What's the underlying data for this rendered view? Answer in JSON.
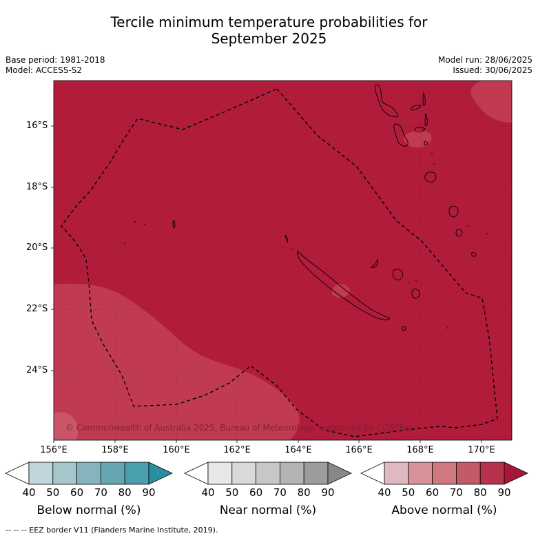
{
  "title": {
    "line1": "Tercile minimum temperature probabilities for",
    "line2": "September 2025"
  },
  "meta": {
    "base_period": "Base period: 1981-2018",
    "model": "Model: ACCESS-S2",
    "model_run": "Model run: 28/06/2025",
    "issued": "Issued: 30/06/2025"
  },
  "map": {
    "lat_labels": [
      "16°S",
      "18°S",
      "20°S",
      "22°S",
      "24°S"
    ],
    "lon_labels": [
      "156°E",
      "158°E",
      "160°E",
      "162°E",
      "164°E",
      "166°E",
      "168°E",
      "170°E"
    ],
    "copyright": "© Commonwealth of Australia 2025, Bureau of Meteorology, supported by COSPPac",
    "colors": {
      "above_80_90": "#b01c3a",
      "above_70_80": "#c03a52",
      "above_60_70": "#c95568",
      "coast": "#000000",
      "eez": "#000000"
    }
  },
  "colorbars": [
    {
      "label": "Below normal (%)",
      "ticks": [
        "40",
        "50",
        "60",
        "70",
        "80",
        "90"
      ],
      "colors": [
        "#ffffff",
        "#c0d6dc",
        "#a5c7cc",
        "#86b4be",
        "#66a6b3",
        "#4a9fae",
        "#2a8ea3"
      ]
    },
    {
      "label": "Near normal (%)",
      "ticks": [
        "40",
        "50",
        "60",
        "70",
        "80",
        "90"
      ],
      "colors": [
        "#ffffff",
        "#e8e8e8",
        "#d9d9d9",
        "#c7c7c7",
        "#b3b3b3",
        "#9c9c9c",
        "#888888"
      ]
    },
    {
      "label": "Above normal (%)",
      "ticks": [
        "40",
        "50",
        "60",
        "70",
        "80",
        "90"
      ],
      "colors": [
        "#ffffff",
        "#e0b8bf",
        "#d69298",
        "#cf7880",
        "#c45a68",
        "#b7324a",
        "#a8163a"
      ]
    }
  ],
  "footnote": "--  --  -- EEZ border V11 (Flanders Marine Institute, 2019)."
}
